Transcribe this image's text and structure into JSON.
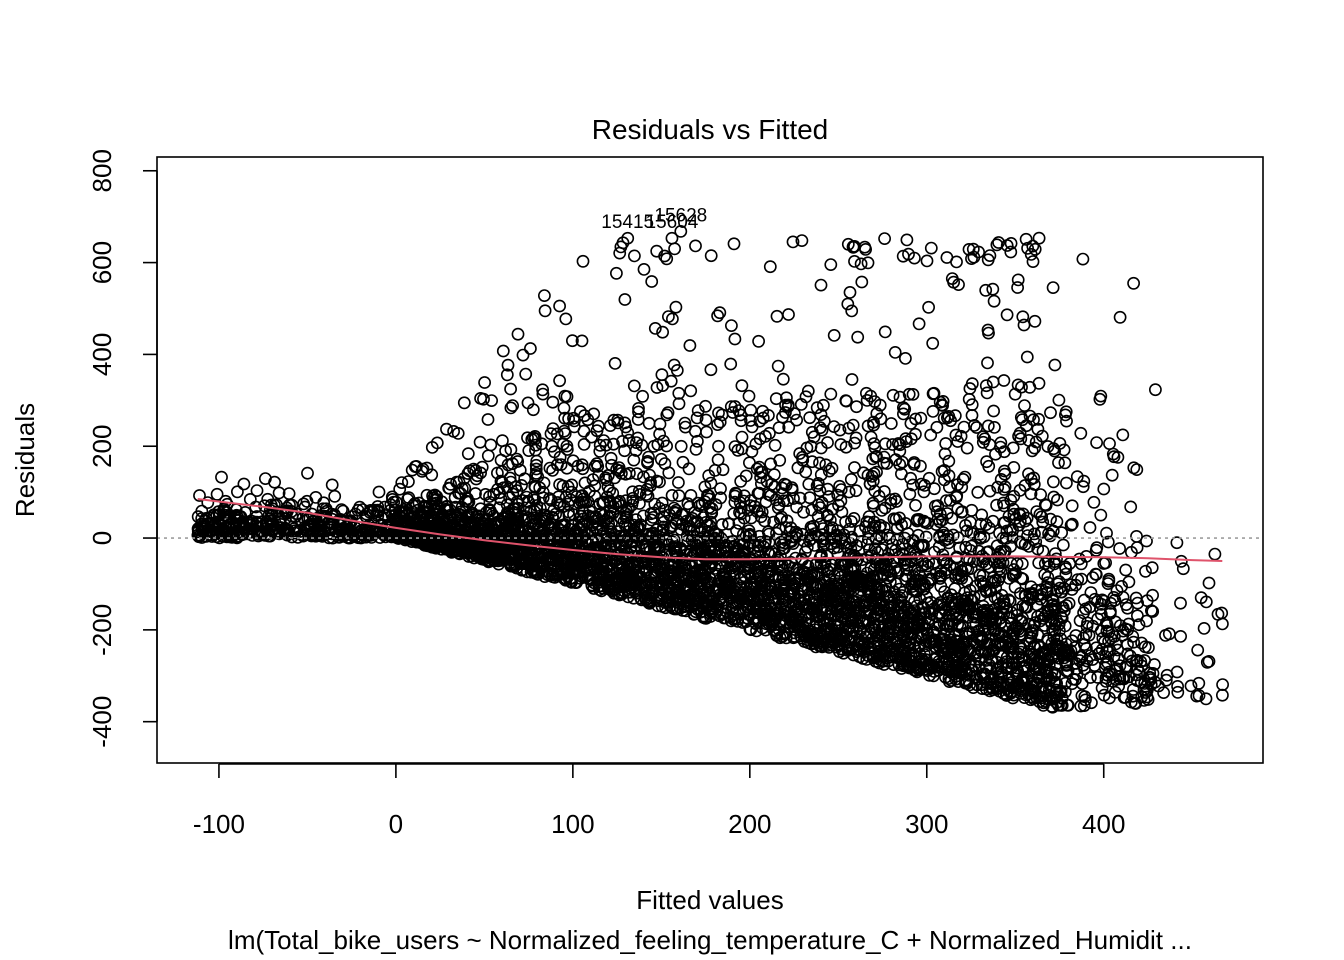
{
  "chart_data": {
    "type": "scatter",
    "title": "Residuals vs Fitted",
    "xlabel": "Fitted values",
    "ylabel": "Residuals",
    "subtitle": "lm(Total_bike_users ~ Normalized_feeling_temperature_C + Normalized_Humidit ...",
    "xlim": [
      -135,
      490
    ],
    "ylim": [
      -490,
      830
    ],
    "x_ticks": [
      -100,
      0,
      100,
      200,
      300,
      400
    ],
    "y_ticks": [
      -400,
      -200,
      0,
      200,
      400,
      600,
      800
    ],
    "x_tick_labels": [
      "-100",
      "0",
      "100",
      "200",
      "300",
      "400"
    ],
    "y_tick_labels": [
      "-400",
      "-200",
      "0",
      "200",
      "400",
      "600",
      "800"
    ],
    "reference_line_y": 0,
    "smooth_line": {
      "color": "#DF536B",
      "x": [
        -112,
        -75,
        -50,
        -25,
        0,
        25,
        50,
        75,
        100,
        125,
        150,
        175,
        200,
        225,
        250,
        275,
        300,
        325,
        350,
        375,
        400,
        425,
        450,
        467
      ],
      "y": [
        85,
        68,
        55,
        38,
        22,
        8,
        -5,
        -16,
        -26,
        -35,
        -42,
        -46,
        -46,
        -45,
        -43,
        -42,
        -40,
        -40,
        -40,
        -41,
        -42,
        -44,
        -48,
        -50
      ]
    },
    "labeled_points": [
      {
        "label": "15628",
        "x": 161,
        "y": 690
      },
      {
        "label": "15415",
        "x": 131,
        "y": 675
      },
      {
        "label": "15604",
        "x": 156,
        "y": 675
      }
    ],
    "n_points": 17379,
    "grid": false,
    "legend": "none"
  }
}
